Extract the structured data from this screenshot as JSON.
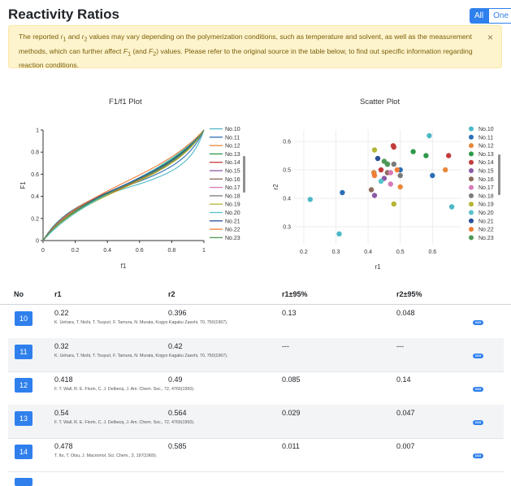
{
  "page": {
    "title": "Reactivity Ratios"
  },
  "toggle": {
    "all": "All",
    "one": "One"
  },
  "alert": {
    "p1": "The reported ",
    "r1": "r",
    "r1sub": "1",
    "and1": " and ",
    "r2": "r",
    "r2sub": "2",
    "p2": " values may vary depending on the polymerization conditions, such as temperature and solvent, as well as the measurement methods, which can further affect ",
    "F1": "F",
    "F1sub": "1",
    "p3": " (and ",
    "F2": "F",
    "F2sub": "2",
    "p4": ") values. Please refer to the original source in the table below, to find out specific information regarding reaction conditions.",
    "close": "×"
  },
  "colors": {
    "series": [
      "#4db8c7",
      "#2c6fb5",
      "#e8883a",
      "#2e9a4a",
      "#c23b3b",
      "#8a5aa6",
      "#8b6b5a",
      "#d67ab8",
      "#7a7a7a",
      "#b5b534",
      "#57c3cc",
      "#2a4f9a",
      "#f07d36",
      "#4e9a55"
    ],
    "primary": "#2f80ed"
  },
  "chart_data": [
    {
      "type": "line",
      "title": "F1/f1 Plot",
      "xlabel": "f1",
      "ylabel": "F1",
      "xlim": [
        0,
        1
      ],
      "ylim": [
        0,
        1
      ],
      "xticks": [
        "0",
        "0.2",
        "0.4",
        "0.6",
        "0.8",
        "1"
      ],
      "yticks": [
        "0",
        "0.2",
        "0.4",
        "0.6",
        "0.8",
        "1"
      ],
      "legend": "right",
      "series": [
        {
          "name": "No.10",
          "r1": 0.22,
          "r2": 0.396
        },
        {
          "name": "No.11",
          "r1": 0.32,
          "r2": 0.42
        },
        {
          "name": "No.12",
          "r1": 0.418,
          "r2": 0.49
        },
        {
          "name": "No.13",
          "r1": 0.54,
          "r2": 0.564
        },
        {
          "name": "No.14",
          "r1": 0.478,
          "r2": 0.585
        },
        {
          "name": "No.15",
          "r1": 0.45,
          "r2": 0.47
        },
        {
          "name": "No.16",
          "r1": 0.41,
          "r2": 0.43
        },
        {
          "name": "No.17",
          "r1": 0.47,
          "r2": 0.49
        },
        {
          "name": "No.18",
          "r1": 0.48,
          "r2": 0.52
        },
        {
          "name": "No.19",
          "r1": 0.42,
          "r2": 0.57
        },
        {
          "name": "No.20",
          "r1": 0.59,
          "r2": 0.62
        },
        {
          "name": "No.21",
          "r1": 0.5,
          "r2": 0.5
        },
        {
          "name": "No.22",
          "r1": 0.63,
          "r2": 0.5
        },
        {
          "name": "No.23",
          "r1": 0.46,
          "r2": 0.52
        }
      ]
    },
    {
      "type": "scatter",
      "title": "Scatter Plot",
      "xlabel": "r1",
      "ylabel": "r2",
      "xlim": [
        0.17,
        0.69
      ],
      "ylim": [
        0.24,
        0.64
      ],
      "xticks": [
        0.2,
        0.3,
        0.4,
        0.5,
        0.6
      ],
      "yticks": [
        0.3,
        0.4,
        0.5,
        0.6
      ],
      "legend": "right",
      "series": [
        {
          "name": "No.10",
          "points": [
            [
              0.22,
              0.396
            ],
            [
              0.31,
              0.275
            ],
            [
              0.59,
              0.62
            ],
            [
              0.66,
              0.37
            ]
          ]
        },
        {
          "name": "No.11",
          "points": [
            [
              0.32,
              0.42
            ],
            [
              0.418,
              0.49
            ],
            [
              0.5,
              0.5
            ],
            [
              0.6,
              0.48
            ]
          ]
        },
        {
          "name": "No.12",
          "points": [
            [
              0.418,
              0.49
            ],
            [
              0.5,
              0.44
            ],
            [
              0.64,
              0.5
            ]
          ]
        },
        {
          "name": "No.13",
          "points": [
            [
              0.54,
              0.564
            ],
            [
              0.58,
              0.55
            ],
            [
              0.46,
              0.52
            ]
          ]
        },
        {
          "name": "No.14",
          "points": [
            [
              0.478,
              0.585
            ],
            [
              0.44,
              0.5
            ],
            [
              0.65,
              0.55
            ],
            [
              0.48,
              0.58
            ]
          ]
        },
        {
          "name": "No.15",
          "points": [
            [
              0.45,
              0.47
            ],
            [
              0.42,
              0.41
            ]
          ]
        },
        {
          "name": "No.16",
          "points": [
            [
              0.41,
              0.43
            ],
            [
              0.46,
              0.49
            ]
          ]
        },
        {
          "name": "No.17",
          "points": [
            [
              0.47,
              0.49
            ],
            [
              0.47,
              0.45
            ]
          ]
        },
        {
          "name": "No.18",
          "points": [
            [
              0.48,
              0.52
            ],
            [
              0.5,
              0.48
            ]
          ]
        },
        {
          "name": "No.19",
          "points": [
            [
              0.42,
              0.57
            ],
            [
              0.48,
              0.38
            ]
          ]
        },
        {
          "name": "No.20",
          "points": [
            [
              0.44,
              0.46
            ]
          ]
        },
        {
          "name": "No.21",
          "points": [
            [
              0.46,
              0.52
            ],
            [
              0.43,
              0.54
            ]
          ]
        },
        {
          "name": "No.22",
          "points": [
            [
              0.42,
              0.48
            ],
            [
              0.49,
              0.5
            ]
          ]
        },
        {
          "name": "No.23",
          "points": [
            [
              0.46,
              0.52
            ],
            [
              0.45,
              0.53
            ]
          ]
        }
      ]
    }
  ],
  "table": {
    "headers": {
      "no": "No",
      "r1": "r1",
      "r2": "r2",
      "r1ci": "r1±95%",
      "r2ci": "r2±95%"
    },
    "doi": "DOI",
    "rows": [
      {
        "no": "10",
        "r1": "0.22",
        "r2": "0.396",
        "r1ci": "0.13",
        "r2ci": "0.048",
        "ref": "K. Uehara, T. Nishi, T. Tsuyuri, F. Tamura, N. Murata, Kogyo Kagaku Zasshi, 70, 750(1967)."
      },
      {
        "no": "11",
        "r1": "0.32",
        "r2": "0.42",
        "r1ci": "---",
        "r2ci": "---",
        "ref": "K. Uehara, T. Nishi, T. Tsuyuri, F. Tamura, N. Murata, Kogyo Kagaku Zasshi, 70, 750(1967)."
      },
      {
        "no": "12",
        "r1": "0.418",
        "r2": "0.49",
        "r1ci": "0.085",
        "r2ci": "0.14",
        "ref": "F. T. Wall, R. E. Florin, C. J. Delbecq, J. Am. Chem. Soc., 72, 4769(1950)."
      },
      {
        "no": "13",
        "r1": "0.54",
        "r2": "0.564",
        "r1ci": "0.029",
        "r2ci": "0.047",
        "ref": "F. T. Wall, R. E. Florin, C. J. Delbecq, J. Am. Chem. Soc., 72, 4769(1950)."
      },
      {
        "no": "14",
        "r1": "0.478",
        "r2": "0.585",
        "r1ci": "0.011",
        "r2ci": "0.007",
        "ref": "T. Ito, T. Otsu, J. Macromol. Sci. Chem., 3, 197(1969)."
      }
    ]
  }
}
